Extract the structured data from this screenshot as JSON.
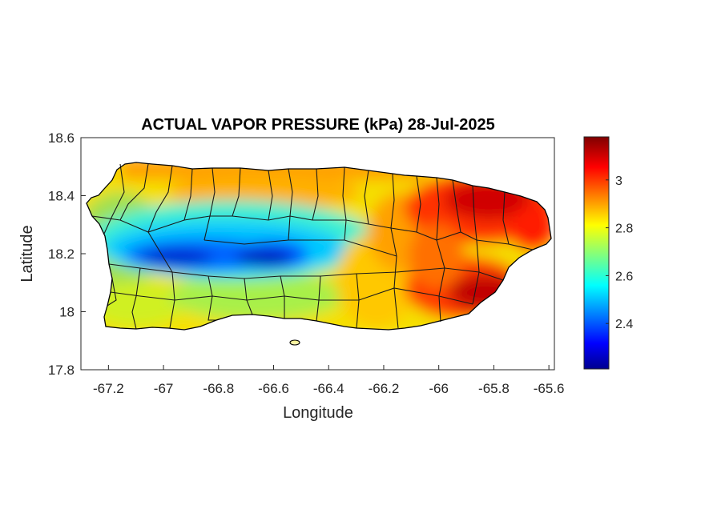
{
  "title": "ACTUAL VAPOR PRESSURE (kPa) 28-Jul-2025",
  "map_data": {
    "type": "heatmap",
    "region": "Puerto Rico",
    "variable": "ACTUAL VAPOR PRESSURE",
    "units": "kPa",
    "date": "28-Jul-2025",
    "xlabel": "Longitude",
    "ylabel": "Latitude",
    "xlim": [
      -67.3,
      -65.58
    ],
    "ylim": [
      17.8,
      18.6
    ],
    "xticks": [
      "-67.2",
      "-67",
      "-66.8",
      "-66.6",
      "-66.4",
      "-66.2",
      "-66",
      "-65.8",
      "-65.6"
    ],
    "yticks": [
      "18.6",
      "18.4",
      "18.2",
      "18",
      "17.8"
    ],
    "colorbar": {
      "colormap": "jet",
      "range": [
        2.21,
        3.18
      ],
      "ticks": [
        "3",
        "2.8",
        "2.6",
        "2.4"
      ]
    },
    "pattern": {
      "min_zone": "central cordillera near latitude 18.17 (about 2.25-2.45 kPa)",
      "max_zone": "eastern and southeastern coast (about 3.0-3.15 kPa)",
      "west_and_south_coast": "about 2.7-2.9 kPa",
      "north_coast": "about 2.8-2.95 kPa"
    }
  }
}
